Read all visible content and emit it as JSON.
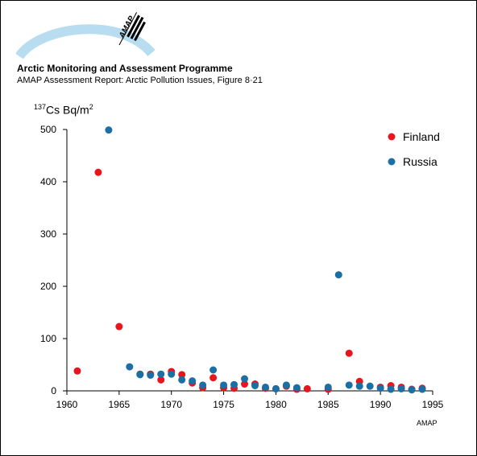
{
  "header": {
    "title": "Arctic Monitoring and Assessment Programme",
    "subtitle": "AMAP Assessment Report: Arctic Pollution Issues, Figure 8·21",
    "logo_text": "AMAP",
    "credit": "AMAP"
  },
  "colors": {
    "finland": "#e8141e",
    "russia": "#1a6fa5",
    "logo_arc": "#b8dcf0"
  },
  "chart_data": {
    "type": "scatter",
    "title": "",
    "xlabel": "",
    "ylabel": "137Cs Bq/m2",
    "ylabel_parts": {
      "sup1": "137",
      "main": "Cs Bq/m",
      "sup2": "2"
    },
    "xlim": [
      1960,
      1995
    ],
    "ylim": [
      0,
      500
    ],
    "xticks": [
      1960,
      1965,
      1970,
      1975,
      1980,
      1985,
      1990,
      1995
    ],
    "yticks": [
      0,
      100,
      200,
      300,
      400,
      500
    ],
    "grid": false,
    "legend_position": "top-right",
    "series": [
      {
        "name": "Finland",
        "color": "#e8141e",
        "points": [
          [
            1961,
            38
          ],
          [
            1963,
            418
          ],
          [
            1965,
            123
          ],
          [
            1967,
            32
          ],
          [
            1968,
            32
          ],
          [
            1969,
            21
          ],
          [
            1970,
            37
          ],
          [
            1971,
            31
          ],
          [
            1972,
            15
          ],
          [
            1973,
            6
          ],
          [
            1974,
            25
          ],
          [
            1975,
            6
          ],
          [
            1976,
            5
          ],
          [
            1977,
            13
          ],
          [
            1978,
            13
          ],
          [
            1979,
            5
          ],
          [
            1980,
            4
          ],
          [
            1981,
            9
          ],
          [
            1982,
            3
          ],
          [
            1983,
            4
          ],
          [
            1985,
            3
          ],
          [
            1987,
            72
          ],
          [
            1988,
            18
          ],
          [
            1990,
            7
          ],
          [
            1991,
            10
          ],
          [
            1992,
            7
          ],
          [
            1993,
            3
          ],
          [
            1994,
            5
          ]
        ]
      },
      {
        "name": "Russia",
        "color": "#1a6fa5",
        "points": [
          [
            1964,
            499
          ],
          [
            1966,
            46
          ],
          [
            1967,
            31
          ],
          [
            1968,
            30
          ],
          [
            1969,
            32
          ],
          [
            1970,
            32
          ],
          [
            1971,
            21
          ],
          [
            1972,
            19
          ],
          [
            1973,
            11
          ],
          [
            1974,
            40
          ],
          [
            1975,
            11
          ],
          [
            1976,
            12
          ],
          [
            1977,
            23
          ],
          [
            1978,
            10
          ],
          [
            1979,
            7
          ],
          [
            1980,
            4
          ],
          [
            1981,
            11
          ],
          [
            1982,
            6
          ],
          [
            1985,
            7
          ],
          [
            1986,
            222
          ],
          [
            1987,
            11
          ],
          [
            1988,
            9
          ],
          [
            1989,
            9
          ],
          [
            1990,
            5
          ],
          [
            1991,
            3
          ],
          [
            1992,
            4
          ],
          [
            1993,
            2
          ],
          [
            1994,
            3
          ]
        ]
      }
    ]
  }
}
